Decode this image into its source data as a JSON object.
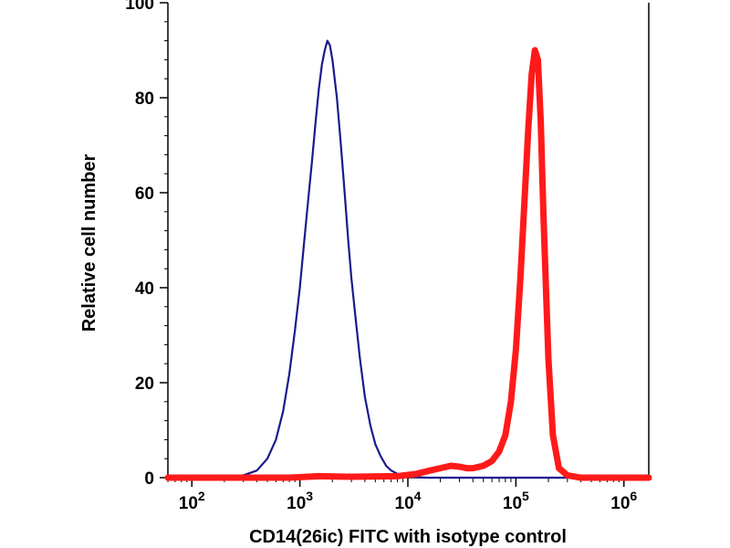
{
  "chart_data": {
    "type": "line",
    "title": "",
    "xlabel": "CD14(26ic) FITC with isotype control",
    "ylabel": "Relative cell number",
    "xscale": "log",
    "xlim": [
      60,
      1700000
    ],
    "ylim": [
      0,
      100
    ],
    "grid": false,
    "x_ticks": [
      {
        "base": "10",
        "exp": "2",
        "value": 100
      },
      {
        "base": "10",
        "exp": "3",
        "value": 1000
      },
      {
        "base": "10",
        "exp": "4",
        "value": 10000
      },
      {
        "base": "10",
        "exp": "5",
        "value": 100000
      },
      {
        "base": "10",
        "exp": "6",
        "value": 1000000
      }
    ],
    "y_ticks": [
      0,
      20,
      40,
      60,
      80,
      100
    ],
    "series": [
      {
        "name": "isotype control",
        "color": "#1a1a8c",
        "x": [
          60,
          200,
          300,
          400,
          500,
          600,
          700,
          800,
          900,
          1000,
          1100,
          1200,
          1300,
          1400,
          1500,
          1600,
          1700,
          1800,
          1900,
          2000,
          2200,
          2400,
          2600,
          2800,
          3000,
          3300,
          3600,
          4000,
          4500,
          5000,
          5600,
          6300,
          7000,
          8000,
          9000,
          10000,
          12000,
          15000,
          20000,
          1700000
        ],
        "y": [
          0,
          0,
          0.5,
          1.5,
          4,
          8,
          14,
          22,
          31,
          40,
          50,
          59,
          67,
          75,
          82,
          87,
          90,
          92,
          91,
          88,
          80,
          70,
          60,
          50,
          42,
          33,
          25,
          17,
          11,
          7,
          4.5,
          2.5,
          1.5,
          0.8,
          0.4,
          0.2,
          0.1,
          0,
          0,
          0
        ]
      },
      {
        "name": "CD14(26ic) FITC",
        "color": "#ff1a1a",
        "x": [
          60,
          800,
          1500,
          3000,
          8000,
          12000,
          16000,
          20000,
          25000,
          30000,
          35000,
          40000,
          50000,
          60000,
          70000,
          80000,
          90000,
          100000,
          110000,
          120000,
          130000,
          140000,
          150000,
          160000,
          170000,
          180000,
          200000,
          220000,
          250000,
          300000,
          400000,
          1700000
        ],
        "y": [
          0,
          0,
          0.3,
          0.2,
          0.3,
          0.8,
          1.5,
          2,
          2.5,
          2.3,
          2,
          2,
          2.5,
          3.5,
          5.5,
          9,
          16,
          27,
          42,
          58,
          73,
          85,
          90,
          88,
          75,
          55,
          25,
          9,
          2,
          0.5,
          0,
          0
        ]
      }
    ]
  }
}
